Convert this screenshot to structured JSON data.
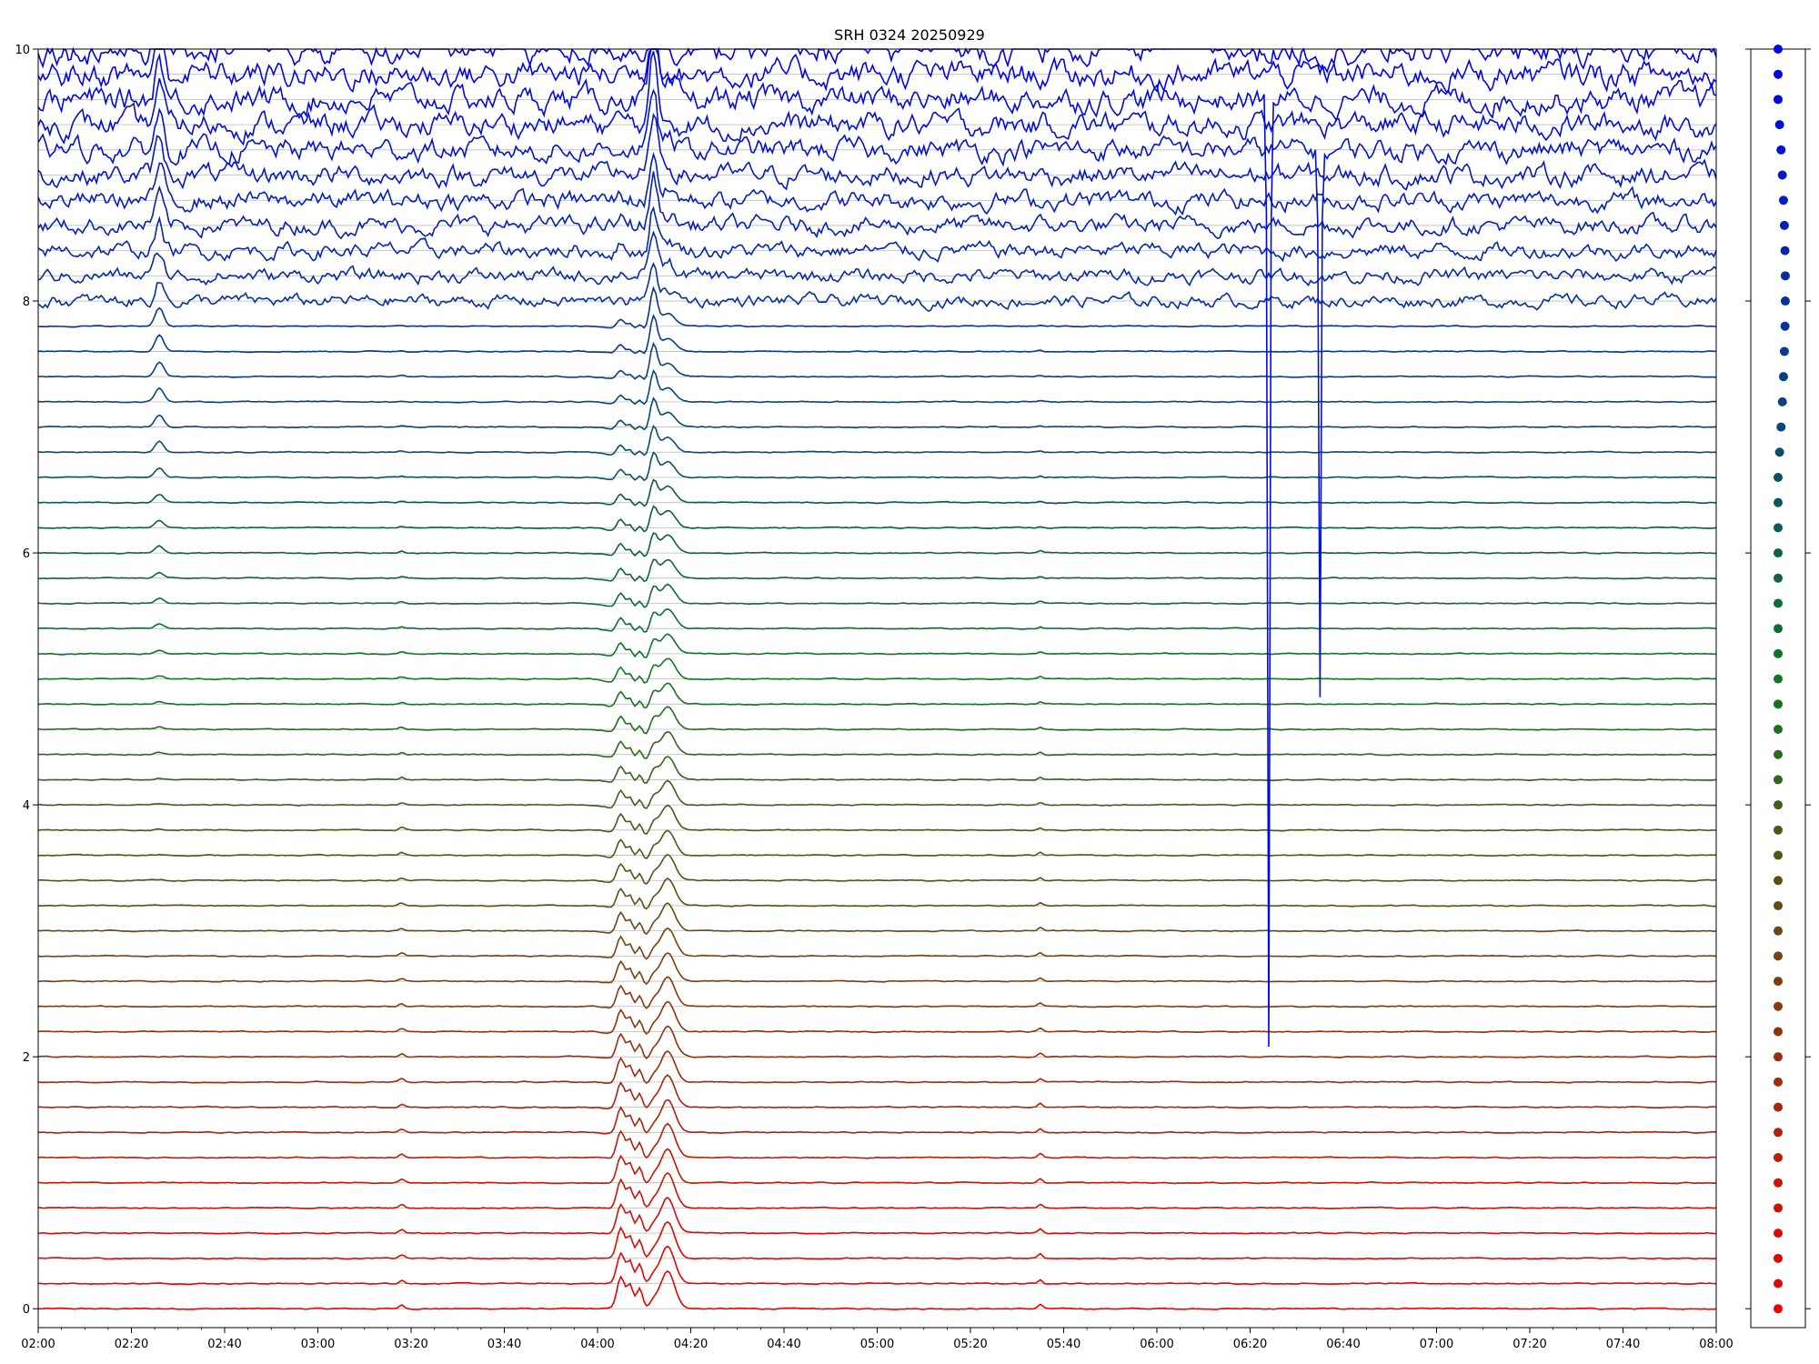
{
  "chart_data": {
    "type": "line",
    "title": "SRH 0324 20250929",
    "xlabel": "",
    "ylabel": "",
    "x_range": [
      "02:00",
      "08:00"
    ],
    "ylim": [
      -0.15,
      10.0
    ],
    "grid": "horizontal lines at each trace baseline",
    "x_ticks": [
      "02:00",
      "02:20",
      "02:40",
      "03:00",
      "03:20",
      "03:40",
      "04:00",
      "04:20",
      "04:40",
      "05:00",
      "05:20",
      "05:40",
      "06:00",
      "06:20",
      "06:40",
      "07:00",
      "07:20",
      "07:40",
      "08:00"
    ],
    "y_ticks": [
      "0",
      "2",
      "4",
      "6",
      "8",
      "10"
    ],
    "series_count": 51,
    "baseline_spacing": 0.2,
    "color_low_index": "#ee0000",
    "color_mid_index": "#117722",
    "color_high_index": "#0000ee",
    "events": [
      {
        "time": "02:26",
        "note": "peak in upper (blue) channels"
      },
      {
        "time": "04:05",
        "note": "burst, strongest in lower (red) channels"
      },
      {
        "time": "04:12",
        "note": "main burst, peak near top of plot"
      },
      {
        "time": "04:15",
        "note": "secondary burst"
      },
      {
        "time": "05:35",
        "note": "small spike in lower channels"
      },
      {
        "time": "06:24",
        "note": "sharp dip in one blue channel down to ~2.1"
      },
      {
        "time": "06:35",
        "note": "sharp dip in one blue channel down to ~4.9"
      }
    ],
    "side_panel": {
      "type": "scatter",
      "description": "per-channel marker column, one point per trace",
      "y_values_equal_baselines": true
    }
  }
}
